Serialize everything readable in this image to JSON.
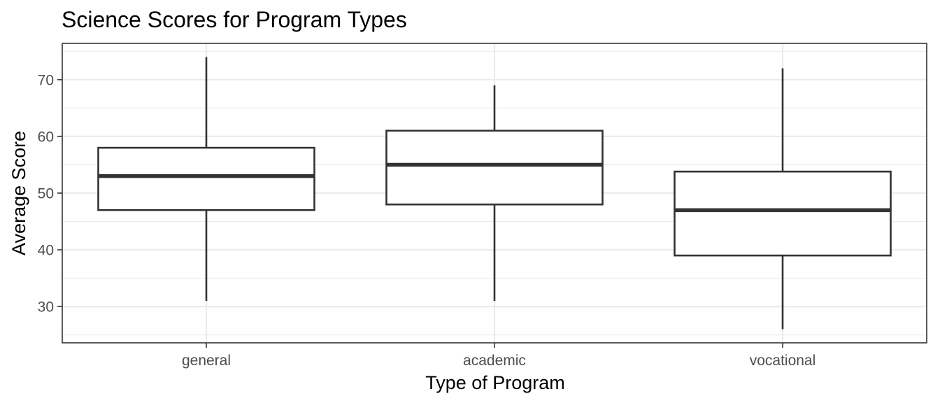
{
  "chart_data": {
    "type": "box",
    "title": "Science Scores for Program Types",
    "xlabel": "Type of Program",
    "ylabel": "Average Score",
    "categories": [
      "general",
      "academic",
      "vocational"
    ],
    "boxes": [
      {
        "category": "general",
        "min": 31,
        "q1": 47,
        "median": 53,
        "q3": 58,
        "max": 74
      },
      {
        "category": "academic",
        "min": 31,
        "q1": 48,
        "median": 55,
        "q3": 61,
        "max": 69
      },
      {
        "category": "vocational",
        "min": 26,
        "q1": 39,
        "median": 47,
        "q3": 53.8,
        "max": 72
      }
    ],
    "ylim": [
      23.6,
      76.4
    ],
    "yticks": [
      30,
      40,
      50,
      60,
      70
    ],
    "ytick_labels": [
      "30",
      "40",
      "50",
      "60",
      "70"
    ],
    "grid": true,
    "legend": "none",
    "colors": {
      "box_fill": "#ffffff",
      "box_line": "#333333",
      "grid": "#ebebeb"
    }
  }
}
